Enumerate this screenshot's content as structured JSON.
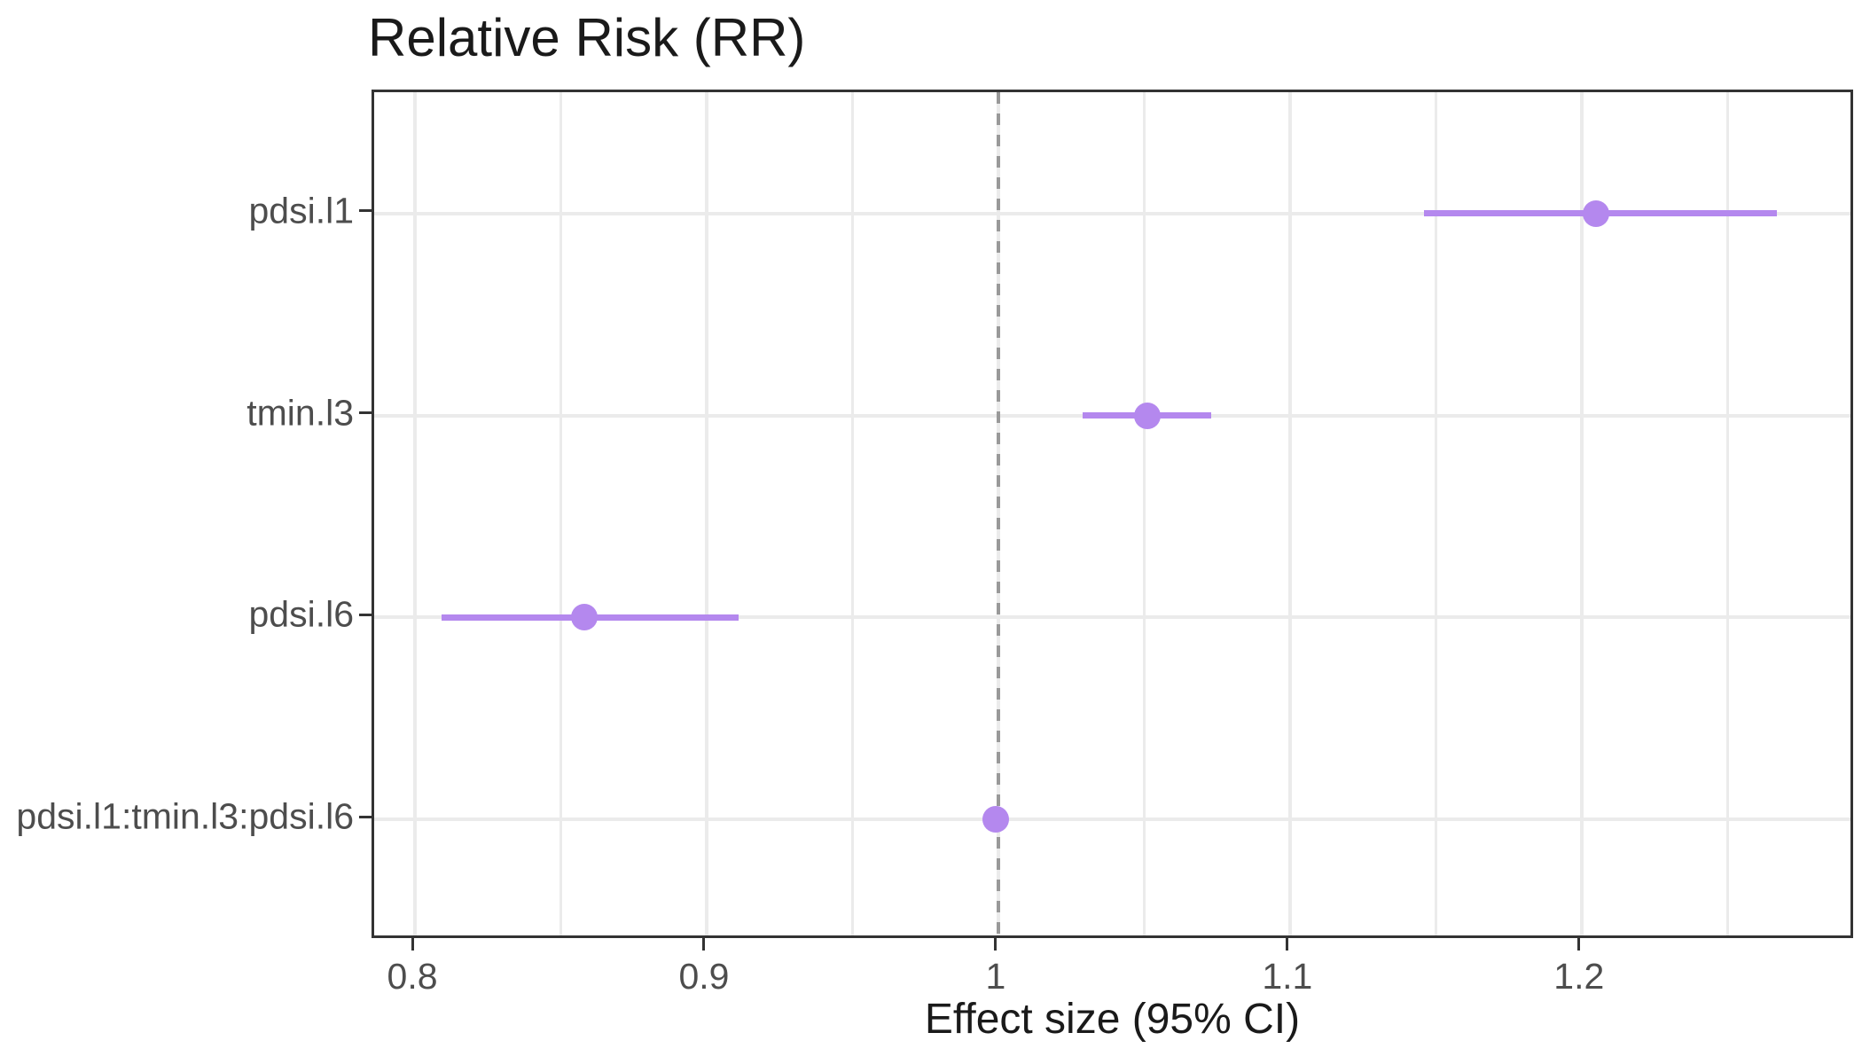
{
  "chart_data": {
    "type": "scatter",
    "subtype": "forest-pointrange",
    "title": "Relative Risk (RR)",
    "xlabel": "Effect size (95% CI)",
    "ylabel": "",
    "xlim": [
      0.786,
      1.294
    ],
    "x_major_ticks": [
      0.8,
      0.9,
      1.0,
      1.1,
      1.2
    ],
    "x_tick_labels": [
      "0.8",
      "0.9",
      "1",
      "1.1",
      "1.2"
    ],
    "x_minor_ticks": [
      0.85,
      0.95,
      1.05,
      1.15,
      1.25
    ],
    "y_domain": [
      0.4,
      4.6
    ],
    "grid": true,
    "legend_position": "none",
    "reference_line": {
      "x": 1.0,
      "style": "dashed",
      "color": "#999999"
    },
    "points": [
      {
        "label": "pdsi.l1",
        "estimate": 1.205,
        "ci_low": 1.146,
        "ci_high": 1.267
      },
      {
        "label": "tmin.l3",
        "estimate": 1.051,
        "ci_low": 1.029,
        "ci_high": 1.073
      },
      {
        "label": "pdsi.l6",
        "estimate": 0.858,
        "ci_low": 0.809,
        "ci_high": 0.911
      },
      {
        "label": "pdsi.l1:tmin.l3:pdsi.l6",
        "estimate": 0.999,
        "ci_low": 0.997,
        "ci_high": 1.001
      }
    ]
  },
  "colors": {
    "point": "#b488ee",
    "ci_line": "#b488ee",
    "grid_major": "#ebebeb",
    "grid_minor": "#ebebeb",
    "panel_border": "#333333",
    "tick_mark": "#333333",
    "tick_label": "#4d4d4d",
    "axis_title": "#1a1a1a",
    "plot_title": "#1a1a1a",
    "reference_line": "#999999",
    "background": "#ffffff"
  }
}
